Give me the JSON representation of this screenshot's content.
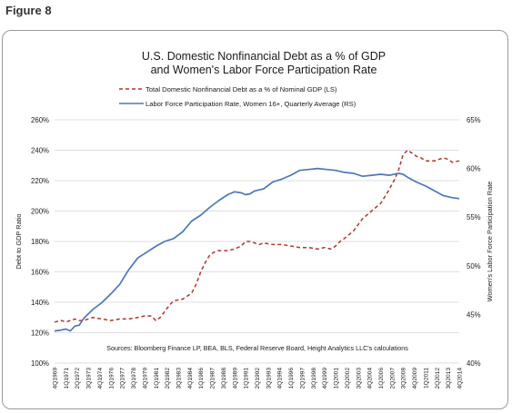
{
  "figure_label": "Figure 8",
  "colors": {
    "debt": "#b5322c",
    "lfpr": "#4a78b5",
    "grid": "#d4d4d4"
  },
  "chart_data": {
    "type": "line",
    "title_line1": "U.S. Domestic Nonfinancial Debt as a % of GDP",
    "title_line2": "and Women's Labor Force Participation Rate",
    "ylabel_left": "Debt to GDP Ratio",
    "ylabel_right": "Women's Labor Force Participation Rate",
    "source": "Sources: Bloomberg Finance LP, BEA, BLS, Federal Reserve Board, Height Analytics LLC's calculations",
    "legend": [
      "Total Domestic Nonfinancial Debt as a % of Nominal GDP (LS)",
      "Labor Force Participation Rate, Women 16+, Quarterly Average (RS)"
    ],
    "ylim_left": [
      100,
      260
    ],
    "yticks_left": [
      "100%",
      "120%",
      "140%",
      "160%",
      "180%",
      "200%",
      "220%",
      "240%",
      "260%"
    ],
    "ylim_right": [
      40,
      65
    ],
    "yticks_right": [
      "40%",
      "45%",
      "50%",
      "55%",
      "60%",
      "65%"
    ],
    "grid": true,
    "x_tick_labels": [
      "4Q1969",
      "1Q1971",
      "2Q1972",
      "3Q1973",
      "4Q1974",
      "1Q1976",
      "2Q1977",
      "3Q1978",
      "4Q1979",
      "1Q1981",
      "2Q1982",
      "3Q1983",
      "4Q1984",
      "1Q1986",
      "2Q1987",
      "3Q1988",
      "4Q1989",
      "1Q1991",
      "2Q1992",
      "3Q1993",
      "4Q1994",
      "1Q1996",
      "2Q1997",
      "3Q1998",
      "4Q1999",
      "1Q2001",
      "2Q2002",
      "3Q2003",
      "4Q2004",
      "1Q2006",
      "2Q2007",
      "3Q2008",
      "4Q2009",
      "1Q2011",
      "2Q2012",
      "3Q2013",
      "4Q2014"
    ],
    "series": [
      {
        "name": "Total Domestic Nonfinancial Debt as a % of Nominal GDP (LS)",
        "axis": "left",
        "x": [
          1969.75,
          1970.5,
          1971.0,
          1971.5,
          1972.0,
          1972.5,
          1973.0,
          1973.5,
          1974.0,
          1975.0,
          1976.0,
          1977.0,
          1978.0,
          1979.0,
          1979.75,
          1980.5,
          1981.0,
          1981.5,
          1982.0,
          1982.5,
          1983.0,
          1984.0,
          1985.0,
          1985.5,
          1986.0,
          1986.5,
          1987.0,
          1987.5,
          1988.0,
          1989.0,
          1989.75,
          1990.5,
          1991.0,
          1991.5,
          1992.0,
          1992.5,
          1993.0,
          1994.0,
          1995.0,
          1996.0,
          1997.0,
          1998.0,
          1999.0,
          1999.75,
          2000.5,
          2001.0,
          2001.5,
          2002.0,
          2003.0,
          2004.0,
          2005.0,
          2006.0,
          2006.75,
          2007.5,
          2008.0,
          2008.5,
          2009.0,
          2009.5,
          2010.0,
          2010.5,
          2011.0,
          2012.0,
          2012.5,
          2013.0,
          2013.5,
          2014.0,
          2014.75
        ],
        "y": [
          127,
          128,
          127,
          128,
          129,
          128,
          128,
          129,
          130,
          129,
          128,
          129,
          129,
          130,
          131,
          131,
          128,
          130,
          134,
          138,
          141,
          142,
          146,
          152,
          160,
          166,
          171,
          173,
          174,
          174,
          175,
          177,
          180,
          180,
          179,
          178,
          179,
          178,
          178,
          177,
          176,
          176,
          175,
          176,
          175,
          177,
          180,
          182,
          187,
          195,
          200,
          205,
          212,
          220,
          227,
          237,
          240,
          238,
          236,
          235,
          233,
          233,
          234,
          235,
          234,
          232,
          233
        ]
      },
      {
        "name": "Labor Force Participation Rate, Women 16+, Quarterly Average (RS)",
        "axis": "right",
        "x": [
          1969.75,
          1970.5,
          1971.0,
          1971.5,
          1972.0,
          1972.5,
          1973.0,
          1974.0,
          1975.0,
          1976.0,
          1977.0,
          1978.0,
          1979.0,
          1980.0,
          1981.0,
          1982.0,
          1983.0,
          1984.0,
          1985.0,
          1986.0,
          1987.0,
          1988.0,
          1989.0,
          1989.75,
          1990.5,
          1991.0,
          1991.5,
          1992.0,
          1993.0,
          1994.0,
          1995.0,
          1996.0,
          1997.0,
          1998.0,
          1999.0,
          2000.0,
          2001.0,
          2002.0,
          2003.0,
          2004.0,
          2005.0,
          2006.0,
          2007.0,
          2008.0,
          2008.5,
          2009.0,
          2010.0,
          2011.0,
          2012.0,
          2013.0,
          2014.0,
          2014.75
        ],
        "y": [
          43.3,
          43.4,
          43.5,
          43.3,
          43.8,
          43.9,
          44.6,
          45.5,
          46.2,
          47.1,
          48.1,
          49.6,
          50.8,
          51.4,
          52.0,
          52.5,
          52.8,
          53.5,
          54.6,
          55.2,
          56.0,
          56.7,
          57.3,
          57.6,
          57.5,
          57.3,
          57.4,
          57.7,
          57.9,
          58.6,
          58.9,
          59.3,
          59.8,
          59.9,
          60.0,
          59.9,
          59.8,
          59.6,
          59.5,
          59.2,
          59.3,
          59.4,
          59.3,
          59.5,
          59.4,
          59.1,
          58.6,
          58.2,
          57.7,
          57.2,
          57.0,
          56.9
        ]
      }
    ]
  }
}
